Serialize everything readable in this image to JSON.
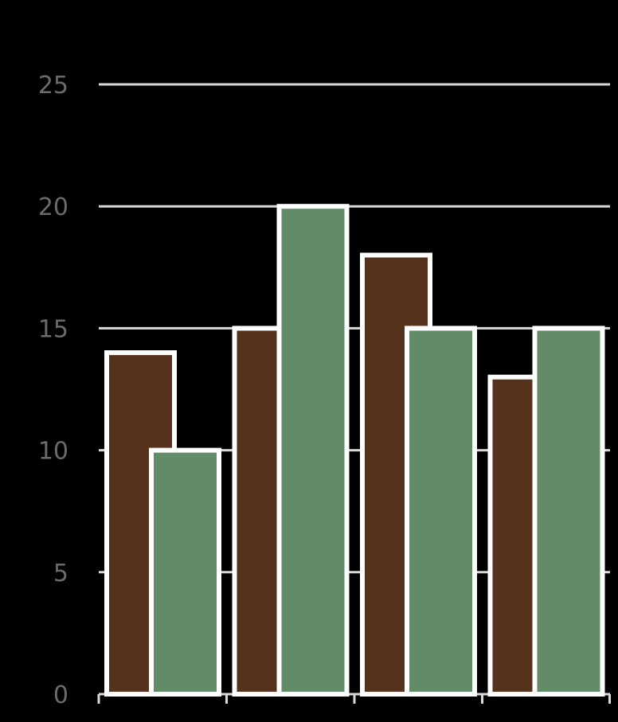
{
  "chart_data": {
    "type": "bar",
    "categories": [
      "",
      "",
      "",
      ""
    ],
    "series": [
      {
        "color": "#55321c",
        "values": [
          14,
          15,
          18,
          13
        ]
      },
      {
        "color": "#628b68",
        "values": [
          10,
          20,
          15,
          15
        ]
      }
    ],
    "ylim": [
      0,
      25
    ],
    "y_ticks": [
      0,
      5,
      10,
      15,
      20,
      25
    ],
    "y_tick_labels": [
      "0",
      "5",
      "10",
      "15",
      "20",
      "25"
    ],
    "grid": true,
    "colors": {
      "background": "#000000",
      "grid": "#d9d9d9",
      "bar_outline": "#ffffff",
      "tick_label": "#6b6b6b"
    }
  }
}
